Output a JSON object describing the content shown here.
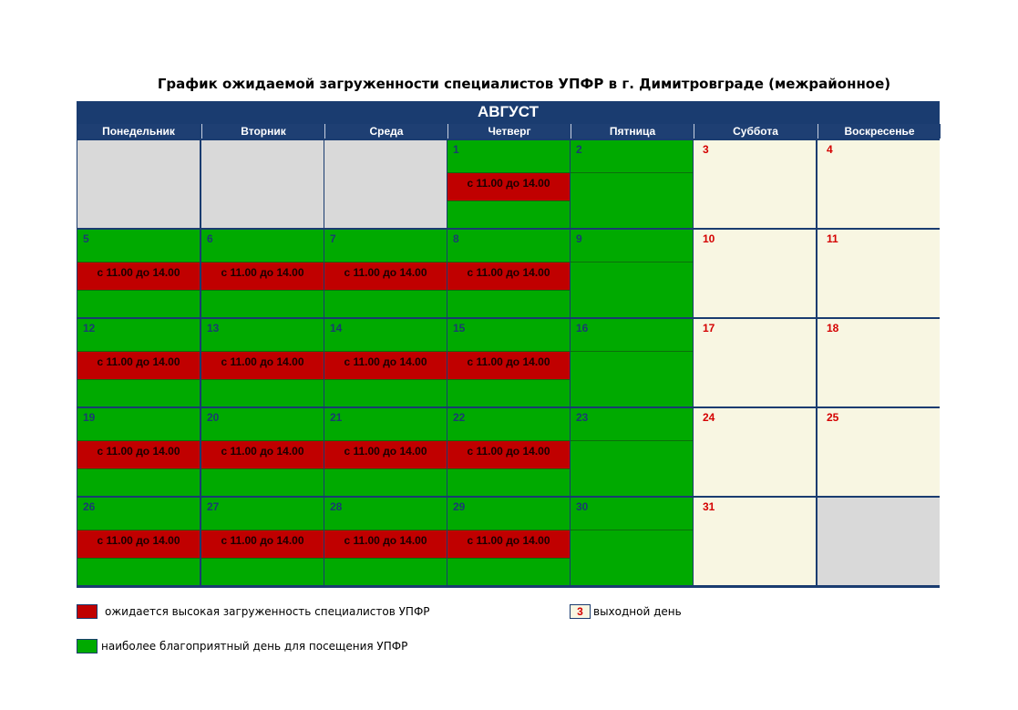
{
  "title": "График ожидаемой загруженности специалистов УПФР в г. Димитровграде (межрайонное)",
  "month": "АВГУСТ",
  "weekdays": [
    "Понедельник",
    "Вторник",
    "Среда",
    "Четверг",
    "Пятница",
    "Суббота",
    "Воскресенье"
  ],
  "busy_label": "с 11.00 до 14.00",
  "weeks": [
    [
      null,
      null,
      null,
      {
        "day": "1",
        "busy": true
      },
      {
        "day": "2",
        "busy": false
      },
      {
        "day": "3",
        "weekend": true
      },
      {
        "day": "4",
        "weekend": true
      }
    ],
    [
      {
        "day": "5",
        "busy": true
      },
      {
        "day": "6",
        "busy": true
      },
      {
        "day": "7",
        "busy": true
      },
      {
        "day": "8",
        "busy": true
      },
      {
        "day": "9",
        "busy": false
      },
      {
        "day": "10",
        "weekend": true
      },
      {
        "day": "11",
        "weekend": true
      }
    ],
    [
      {
        "day": "12",
        "busy": true
      },
      {
        "day": "13",
        "busy": true
      },
      {
        "day": "14",
        "busy": true
      },
      {
        "day": "15",
        "busy": true
      },
      {
        "day": "16",
        "busy": false
      },
      {
        "day": "17",
        "weekend": true
      },
      {
        "day": "18",
        "weekend": true
      }
    ],
    [
      {
        "day": "19",
        "busy": true
      },
      {
        "day": "20",
        "busy": true
      },
      {
        "day": "21",
        "busy": true
      },
      {
        "day": "22",
        "busy": true
      },
      {
        "day": "23",
        "busy": false
      },
      {
        "day": "24",
        "weekend": true
      },
      {
        "day": "25",
        "weekend": true
      }
    ],
    [
      {
        "day": "26",
        "busy": true
      },
      {
        "day": "27",
        "busy": true
      },
      {
        "day": "28",
        "busy": true
      },
      {
        "day": "29",
        "busy": true
      },
      {
        "day": "30",
        "busy": false
      },
      {
        "day": "31",
        "weekend": true
      },
      null
    ]
  ],
  "legend": {
    "busy": "ожидается высокая загруженность специалистов УПФР",
    "weekend_sample": "3",
    "weekend": "выходной день",
    "favorable": "наиболее благоприятный день для посещения УПФР"
  },
  "colors": {
    "header": "#1a3c70",
    "busy": "#c00000",
    "favorable": "#00aa00",
    "weekend": "#f8f6e2",
    "weekend_text": "#d40000",
    "empty": "#d9d9d9"
  }
}
